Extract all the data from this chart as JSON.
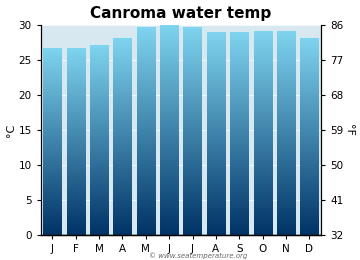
{
  "months": [
    "J",
    "F",
    "M",
    "A",
    "M",
    "J",
    "J",
    "A",
    "S",
    "O",
    "N",
    "D"
  ],
  "values": [
    26.5,
    26.5,
    27.0,
    28.0,
    29.5,
    30.0,
    29.5,
    28.8,
    28.8,
    29.0,
    29.0,
    28.0
  ],
  "title": "Canroma water temp",
  "ylabel_left": "°C",
  "ylabel_right": "°F",
  "ylim_c": [
    0,
    30
  ],
  "yticks_c": [
    0,
    5,
    10,
    15,
    20,
    25,
    30
  ],
  "yticks_f": [
    32,
    41,
    50,
    59,
    68,
    77,
    86
  ],
  "bar_color_bottom": "#003366",
  "bar_color_mid": "#1a7ab5",
  "bar_color_top": "#7fd4ef",
  "plot_bg_color": "#d8e8f0",
  "fig_bg_color": "#ffffff",
  "watermark": "© www.seatemperature.org",
  "title_fontsize": 11,
  "tick_fontsize": 7.5,
  "label_fontsize": 8,
  "bar_width": 0.78
}
